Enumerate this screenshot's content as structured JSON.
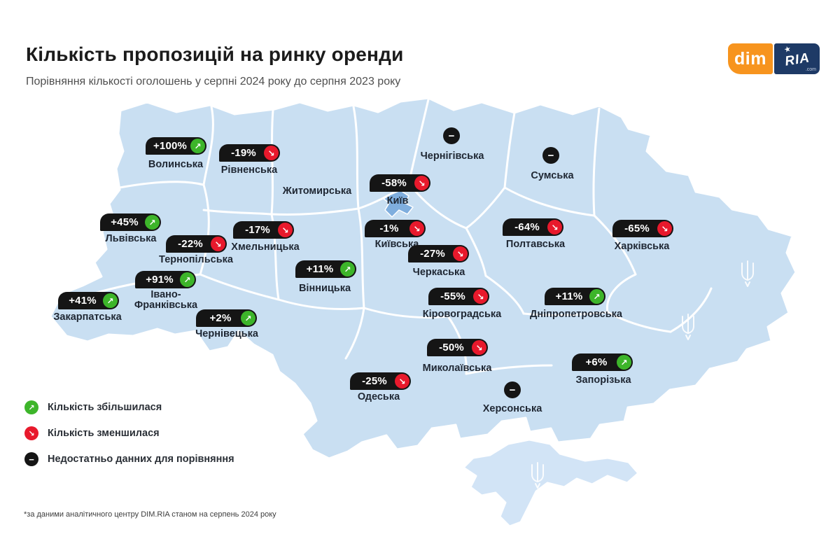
{
  "header": {
    "title": "Кількість пропозицій на ринку оренди",
    "subtitle": "Порівняння кількості оголошень у серпні 2024 року до серпня 2023 року"
  },
  "logo": {
    "dim": "dim",
    "ria": "RIA",
    "com": ".com",
    "star": "★"
  },
  "icons": {
    "up": "↗",
    "down": "↘",
    "minus": "−"
  },
  "colors": {
    "map_fill": "#C9DFF2",
    "crimea_fill": "#D2E4F6",
    "kyiv_city_fill": "#7FAEDE",
    "badge_bg": "#151515",
    "increase_green": "#3DB52A",
    "decrease_red": "#E8192C",
    "logo_orange": "#F7941E",
    "logo_navy": "#1E3A66"
  },
  "regions": [
    {
      "id": "volynska",
      "label": "Волинська",
      "value": "+100%",
      "trend": "up"
    },
    {
      "id": "rivnenska",
      "label": "Рівненська",
      "value": "-19%",
      "trend": "down"
    },
    {
      "id": "zhytomyrska",
      "label": "Житомирська",
      "value": "",
      "trend": "none"
    },
    {
      "id": "chernihivska",
      "label": "Чернігівська",
      "value": "",
      "trend": "nodata"
    },
    {
      "id": "sumska",
      "label": "Сумська",
      "value": "",
      "trend": "nodata"
    },
    {
      "id": "kyiv-city",
      "label": "Київ",
      "value": "-58%",
      "trend": "down"
    },
    {
      "id": "kyivska",
      "label": "Київська",
      "value": "-1%",
      "trend": "down"
    },
    {
      "id": "lvivska",
      "label": "Львівська",
      "value": "+45%",
      "trend": "up"
    },
    {
      "id": "ternopilska",
      "label": "Тернопільська",
      "value": "-22%",
      "trend": "down"
    },
    {
      "id": "khmelnytska",
      "label": "Хмельницька",
      "value": "-17%",
      "trend": "down"
    },
    {
      "id": "zakarpatska",
      "label": "Закарпатська",
      "value": "+41%",
      "trend": "up"
    },
    {
      "id": "ivano-frankivska",
      "label": "Івано-Франківська",
      "value": "+91%",
      "trend": "up"
    },
    {
      "id": "chernivetska",
      "label": "Чернівецька",
      "value": "+2%",
      "trend": "up"
    },
    {
      "id": "vinnytska",
      "label": "Вінницька",
      "value": "+11%",
      "trend": "up"
    },
    {
      "id": "cherkaska",
      "label": "Черкаська",
      "value": "-27%",
      "trend": "down"
    },
    {
      "id": "poltavska",
      "label": "Полтавська",
      "value": "-64%",
      "trend": "down"
    },
    {
      "id": "kharkivska",
      "label": "Харківська",
      "value": "-65%",
      "trend": "down"
    },
    {
      "id": "kirovohradska",
      "label": "Кіровоградська",
      "value": "-55%",
      "trend": "down"
    },
    {
      "id": "dnipropetrovska",
      "label": "Дніпропетровська",
      "value": "+11%",
      "trend": "up"
    },
    {
      "id": "mykolaivska",
      "label": "Миколаївська",
      "value": "-50%",
      "trend": "down"
    },
    {
      "id": "zaporizka",
      "label": "Запорізька",
      "value": "+6%",
      "trend": "up"
    },
    {
      "id": "odeska",
      "label": "Одеська",
      "value": "-25%",
      "trend": "down"
    },
    {
      "id": "khersonska",
      "label": "Херсонська",
      "value": "",
      "trend": "nodata"
    }
  ],
  "legend": {
    "items": [
      {
        "icon": "arrow-up-right",
        "label": "Кількість збільшилася"
      },
      {
        "icon": "arrow-down-right",
        "label": "Кількість зменшилася"
      },
      {
        "icon": "minus",
        "label": "Недостатньо данних для порівняння"
      }
    ]
  },
  "footnote": "*за даними аналітичного центру DIM.RIA станом на серпень 2024 року",
  "chart_data": {
    "type": "heatmap",
    "title": "Кількість пропозицій на ринку оренди",
    "subtitle": "Порівняння кількості оголошень у серпні 2024 року до серпня 2023 року",
    "unit": "%",
    "categories": [
      "Волинська",
      "Рівненська",
      "Житомирська",
      "Чернігівська",
      "Сумська",
      "Київ",
      "Київська",
      "Львівська",
      "Тернопільська",
      "Хмельницька",
      "Закарпатська",
      "Івано-Франківська",
      "Чернівецька",
      "Вінницька",
      "Черкаська",
      "Полтавська",
      "Харківська",
      "Кіровоградська",
      "Дніпропетровська",
      "Миколаївська",
      "Запорізька",
      "Одеська",
      "Херсонська"
    ],
    "values": [
      100,
      -19,
      null,
      null,
      null,
      -58,
      -1,
      45,
      -22,
      -17,
      41,
      91,
      2,
      11,
      -27,
      -64,
      -65,
      -55,
      11,
      -50,
      6,
      -25,
      null
    ],
    "no_data_note": "Недостатньо данних для порівняння"
  }
}
